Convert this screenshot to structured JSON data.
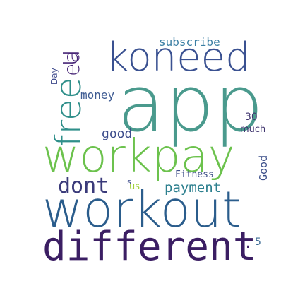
{
  "words": {
    "app": {
      "text": "app",
      "color": "#4a9a8d"
    },
    "workout": {
      "text": "workout",
      "color": "#2b5d8c"
    },
    "different": {
      "text": "different",
      "color": "#3b1e63"
    },
    "koneed": {
      "text": "koneed",
      "color": "#3a5191"
    },
    "workpay": {
      "text": "workpay",
      "color": "#6cc24d"
    },
    "free": {
      "text": "free",
      "color": "#2f8f8a"
    },
    "dont": {
      "text": "dont",
      "color": "#3a3a7a"
    },
    "u": {
      "text": "u",
      "color": "#482677"
    },
    "payment": {
      "text": "payment",
      "color": "#2c7f8e"
    },
    "money": {
      "text": "money",
      "color": "#3f5c93"
    },
    "subscribe": {
      "text": "subscribe",
      "color": "#3a7ea3"
    },
    "good_small": {
      "text": "good",
      "color": "#3d4d8c"
    },
    "Good": {
      "text": "Good",
      "color": "#3c4f8a"
    },
    "Fitness": {
      "text": "Fitness",
      "color": "#3e4f89"
    },
    "much": {
      "text": "much",
      "color": "#40356f"
    },
    "n30": {
      "text": "30",
      "color": "#40356f"
    },
    "Day": {
      "text": "Day",
      "color": "#3f4b8d"
    },
    "us": {
      "text": "us",
      "color": "#a0d03a"
    },
    "n5": {
      "text": "5",
      "color": "#3a6a93"
    },
    "colon": {
      "text": ":",
      "color": "#3b1e63"
    },
    "ea": {
      "text": "ea",
      "color": "#482677"
    },
    "s_dot": {
      "text": "s",
      "color": "#3b4a8b"
    }
  }
}
